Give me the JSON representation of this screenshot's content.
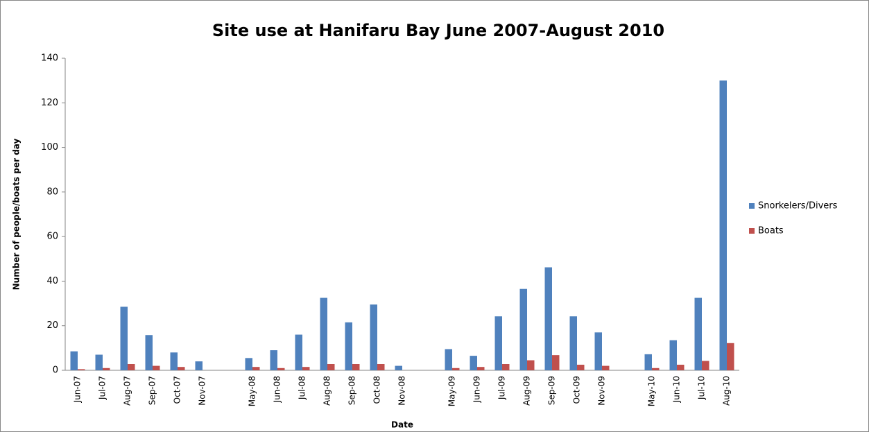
{
  "chart_data": {
    "type": "bar",
    "title": "Site use at Hanifaru Bay June 2007-August 2010",
    "x_label": "Date",
    "y_label": "Number of people/boats per day",
    "categories": [
      "Jun-07",
      "Jul-07",
      "Aug-07",
      "Sep-07",
      "Oct-07",
      "Nov-07",
      null,
      "May-08",
      "Jun-08",
      "Jul-08",
      "Aug-08",
      "Sep-08",
      "Oct-08",
      "Nov-08",
      null,
      "May-09",
      "Jun-09",
      "Jul-09",
      "Aug-09",
      "Sep-09",
      "Oct-09",
      "Nov-09",
      null,
      "May-10",
      "Jun-10",
      "Jul-10",
      "Aug-10"
    ],
    "series": [
      {
        "name": "Snorkelers/Divers",
        "color": "#4f81bd",
        "values": [
          8.5,
          7,
          28.5,
          15.8,
          8,
          4,
          null,
          5.5,
          9,
          16,
          32.5,
          21.5,
          29.5,
          2,
          null,
          9.5,
          6.5,
          24.2,
          36.5,
          46.2,
          24.2,
          17,
          null,
          7.2,
          13.5,
          32.5,
          130
        ]
      },
      {
        "name": "Boats",
        "color": "#c0504d",
        "values": [
          0.5,
          1,
          2.8,
          2,
          1.5,
          0,
          null,
          1.5,
          1,
          1.5,
          2.8,
          2.8,
          2.8,
          0,
          null,
          1,
          1.5,
          2.8,
          4.5,
          6.8,
          2.5,
          2,
          null,
          1,
          2.5,
          4.2,
          12.2
        ]
      }
    ],
    "ylim": [
      0,
      140
    ],
    "yticks": [
      0,
      20,
      40,
      60,
      80,
      100,
      120,
      140
    ],
    "grid": false,
    "legend": "right"
  }
}
